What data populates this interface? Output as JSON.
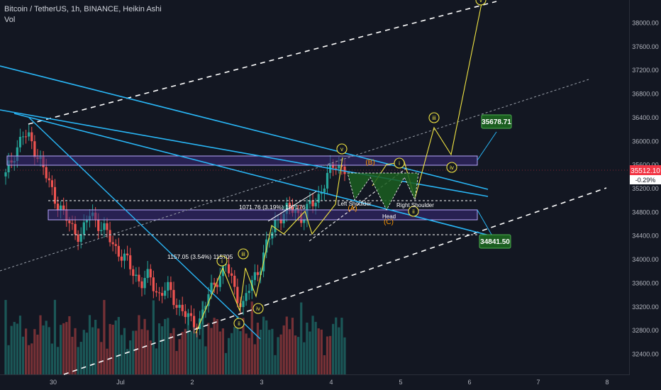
{
  "header": {
    "symbol_title": "Bitcoin / TetherUS, 1h, BINANCE, Heikin Ashi",
    "volume_label": "Vol"
  },
  "colors": {
    "background": "#131722",
    "up_candle": "#26a69a",
    "down_candle": "#ef5350",
    "channel_dashed": "#ffffff",
    "trendline_blue": "#29b6f6",
    "zone_fill": "#3b2a7a",
    "wave_label": "#f0e442",
    "corrective_label": "#ff9800",
    "projection_green": "#1b5e20"
  },
  "price_axis": {
    "ticks": [
      "38000.00",
      "37600.00",
      "37200.00",
      "36800.00",
      "36400.00",
      "36000.00",
      "35600.00",
      "35200.00",
      "34800.00",
      "34400.00",
      "34000.00",
      "33600.00",
      "33200.00",
      "32800.00",
      "32400.00"
    ],
    "current_price": "35512.10",
    "current_change": "-0.29%"
  },
  "time_axis": {
    "ticks": [
      "30",
      "Jul",
      "2",
      "3",
      "4",
      "5",
      "6",
      "7",
      "8"
    ]
  },
  "annotations": {
    "target_high": "35678.71",
    "target_low": "34841.50",
    "measure_1": "1157.05 (3.54%) 115705",
    "measure_2": "1071.76 (3.19%) 107176",
    "left_shoulder": "Left Shoulder",
    "head": "Head",
    "right_shoulder": "Right Shoulder",
    "waves": [
      "i",
      "ii",
      "iii",
      "iv",
      "v",
      "i",
      "ii",
      "iii",
      "iv",
      "v"
    ],
    "corrective": [
      "(A)",
      "(B)",
      "(C)"
    ]
  },
  "chart_data": {
    "type": "candlestick",
    "chart_style": "Heikin Ashi",
    "interval": "1h",
    "y_range": [
      32100,
      38300
    ],
    "x_categories": [
      "30",
      "Jul",
      "2",
      "3",
      "4",
      "5",
      "6",
      "7",
      "8"
    ],
    "price_path": [
      35400,
      35800,
      36100,
      36000,
      35700,
      35300,
      35000,
      34700,
      34500,
      34400,
      34800,
      34600,
      34400,
      34200,
      34000,
      33800,
      33600,
      33700,
      33400,
      33500,
      33300,
      33100,
      32900,
      33000,
      33400,
      33700,
      33900,
      33500,
      33200,
      33600,
      33900,
      34300,
      34700,
      34800,
      34850,
      34700,
      34900,
      35100,
      35400,
      35650,
      35512
    ],
    "current_price": 35512.1,
    "targets": [
      35678.71,
      34841.5
    ]
  }
}
